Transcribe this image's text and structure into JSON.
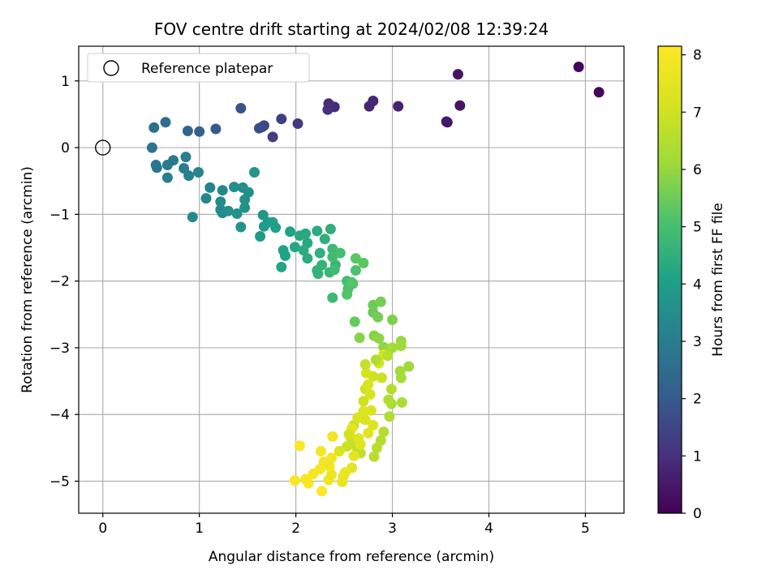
{
  "chart_data": {
    "type": "scatter",
    "title": "FOV centre drift starting at 2024/02/08 12:39:24",
    "xlabel": "Angular distance from reference (arcmin)",
    "ylabel": "Rotation from reference (arcmin)",
    "xlim": [
      -0.25,
      5.4
    ],
    "ylim": [
      -5.48,
      1.52
    ],
    "x_ticks": [
      "0",
      "1",
      "2",
      "3",
      "4",
      "5"
    ],
    "y_ticks": [
      "1",
      "0",
      "−1",
      "−2",
      "−3",
      "−4",
      "−5"
    ],
    "grid": true,
    "legend": {
      "placement": "top-left",
      "entries": [
        "Reference platepar"
      ]
    },
    "reference_point": {
      "x": 0,
      "y": 0
    },
    "colorbar": {
      "label": "Hours from first FF file",
      "range": [
        0,
        8.15
      ],
      "ticks": [
        "0",
        "1",
        "2",
        "3",
        "4",
        "5",
        "6",
        "7",
        "8"
      ],
      "colormap": "viridis"
    },
    "points": [
      [
        4.93,
        1.21,
        0.1
      ],
      [
        5.14,
        0.83,
        0.1
      ],
      [
        3.68,
        1.1,
        0.4
      ],
      [
        3.7,
        0.63,
        0.4
      ],
      [
        3.56,
        0.39,
        0.5
      ],
      [
        3.57,
        0.38,
        0.5
      ],
      [
        3.06,
        0.62,
        0.7
      ],
      [
        2.8,
        0.7,
        0.8
      ],
      [
        2.76,
        0.62,
        0.8
      ],
      [
        2.34,
        0.66,
        0.9
      ],
      [
        2.4,
        0.61,
        0.9
      ],
      [
        2.33,
        0.57,
        1.0
      ],
      [
        2.02,
        0.36,
        1.2
      ],
      [
        1.85,
        0.43,
        1.3
      ],
      [
        1.76,
        0.16,
        1.3
      ],
      [
        1.67,
        0.33,
        1.5
      ],
      [
        1.65,
        0.31,
        1.6
      ],
      [
        1.62,
        0.29,
        1.7
      ],
      [
        1.43,
        0.59,
        1.8
      ],
      [
        1.17,
        0.28,
        2.0
      ],
      [
        1.0,
        0.24,
        2.2
      ],
      [
        0.88,
        0.25,
        2.3
      ],
      [
        0.65,
        0.38,
        2.5
      ],
      [
        0.53,
        0.3,
        2.6
      ],
      [
        0.51,
        0.0,
        2.7
      ],
      [
        0.55,
        -0.26,
        2.8
      ],
      [
        0.56,
        -0.3,
        2.8
      ],
      [
        0.67,
        -0.26,
        2.9
      ],
      [
        0.73,
        -0.19,
        2.9
      ],
      [
        0.86,
        -0.14,
        3.0
      ],
      [
        0.84,
        -0.31,
        3.0
      ],
      [
        0.89,
        -0.42,
        3.1
      ],
      [
        0.67,
        -0.45,
        3.1
      ],
      [
        0.99,
        -0.37,
        3.2
      ],
      [
        1.11,
        -0.6,
        3.2
      ],
      [
        1.24,
        -0.64,
        3.3
      ],
      [
        1.07,
        -0.76,
        3.3
      ],
      [
        1.22,
        -0.81,
        3.4
      ],
      [
        1.22,
        -0.93,
        3.4
      ],
      [
        1.24,
        -0.98,
        3.4
      ],
      [
        0.93,
        -1.04,
        3.4
      ],
      [
        1.36,
        -0.59,
        3.5
      ],
      [
        1.45,
        -0.6,
        3.5
      ],
      [
        1.51,
        -0.67,
        3.5
      ],
      [
        1.47,
        -0.78,
        3.6
      ],
      [
        1.47,
        -0.9,
        3.6
      ],
      [
        1.39,
        -0.99,
        3.6
      ],
      [
        1.3,
        -0.95,
        3.6
      ],
      [
        1.43,
        -1.19,
        3.7
      ],
      [
        1.57,
        -0.37,
        3.7
      ],
      [
        1.66,
        -1.01,
        3.8
      ],
      [
        1.71,
        -1.12,
        3.8
      ],
      [
        1.67,
        -1.18,
        3.9
      ],
      [
        1.63,
        -1.33,
        3.9
      ],
      [
        1.76,
        -1.12,
        4.0
      ],
      [
        1.79,
        -1.2,
        4.0
      ],
      [
        1.94,
        -1.26,
        4.1
      ],
      [
        1.87,
        -1.54,
        4.1
      ],
      [
        1.89,
        -1.62,
        4.1
      ],
      [
        1.85,
        -1.79,
        4.2
      ],
      [
        1.99,
        -1.49,
        4.2
      ],
      [
        2.04,
        -1.32,
        4.3
      ],
      [
        2.1,
        -1.29,
        4.3
      ],
      [
        2.12,
        -1.43,
        4.3
      ],
      [
        2.08,
        -1.54,
        4.4
      ],
      [
        2.12,
        -1.66,
        4.4
      ],
      [
        2.22,
        -1.25,
        4.4
      ],
      [
        2.36,
        -1.22,
        4.5
      ],
      [
        2.3,
        -1.37,
        4.5
      ],
      [
        2.25,
        -1.58,
        4.5
      ],
      [
        2.27,
        -1.76,
        4.6
      ],
      [
        2.22,
        -1.84,
        4.6
      ],
      [
        2.23,
        -1.89,
        4.6
      ],
      [
        2.35,
        -1.87,
        4.7
      ],
      [
        2.41,
        -1.76,
        4.7
      ],
      [
        2.38,
        -2.25,
        4.8
      ],
      [
        2.38,
        -1.52,
        4.8
      ],
      [
        2.38,
        -1.64,
        4.9
      ],
      [
        2.4,
        -1.83,
        4.9
      ],
      [
        2.46,
        -1.58,
        5.0
      ],
      [
        2.53,
        -2.0,
        5.0
      ],
      [
        2.54,
        -2.12,
        5.1
      ],
      [
        2.59,
        -2.04,
        5.1
      ],
      [
        2.62,
        -1.84,
        5.1
      ],
      [
        2.53,
        -2.2,
        5.2
      ],
      [
        2.58,
        -2.02,
        5.2
      ],
      [
        2.62,
        -1.66,
        5.3
      ],
      [
        2.7,
        -1.73,
        5.3
      ],
      [
        2.61,
        -2.61,
        5.4
      ],
      [
        2.8,
        -2.36,
        5.5
      ],
      [
        2.8,
        -2.47,
        5.5
      ],
      [
        2.85,
        -2.54,
        5.6
      ],
      [
        2.88,
        -2.31,
        5.6
      ],
      [
        3.0,
        -2.58,
        5.7
      ],
      [
        2.66,
        -2.85,
        5.8
      ],
      [
        2.81,
        -2.82,
        5.8
      ],
      [
        2.86,
        -2.86,
        5.9
      ],
      [
        2.91,
        -2.99,
        5.9
      ],
      [
        2.97,
        -3.02,
        6.0
      ],
      [
        3.09,
        -2.9,
        6.0
      ],
      [
        3.09,
        -2.97,
        6.1
      ],
      [
        3.17,
        -3.28,
        6.1
      ],
      [
        3.08,
        -3.35,
        6.2
      ],
      [
        3.09,
        -3.45,
        6.2
      ],
      [
        3.1,
        -3.82,
        6.3
      ],
      [
        2.99,
        -3.84,
        6.3
      ],
      [
        2.97,
        -4.03,
        6.4
      ],
      [
        2.96,
        -3.78,
        6.4
      ],
      [
        2.91,
        -4.26,
        6.5
      ],
      [
        2.88,
        -4.39,
        6.5
      ],
      [
        2.84,
        -4.5,
        6.6
      ],
      [
        2.81,
        -4.63,
        6.6
      ],
      [
        2.67,
        -4.58,
        6.7
      ],
      [
        2.63,
        -4.49,
        6.7
      ],
      [
        2.6,
        -4.42,
        6.8
      ],
      [
        2.57,
        -4.35,
        6.8
      ],
      [
        2.53,
        -4.48,
        6.9
      ],
      [
        2.6,
        -4.16,
        6.9
      ],
      [
        2.7,
        -3.8,
        7.0
      ],
      [
        2.72,
        -3.62,
        7.0
      ],
      [
        2.8,
        -3.43,
        7.0
      ],
      [
        2.86,
        -3.23,
        7.1
      ],
      [
        2.91,
        -3.1,
        7.1
      ],
      [
        2.73,
        -3.38,
        7.1
      ],
      [
        2.75,
        -3.55,
        7.2
      ],
      [
        2.77,
        -3.7,
        7.2
      ],
      [
        2.78,
        -3.94,
        7.2
      ],
      [
        2.7,
        -3.95,
        7.3
      ],
      [
        2.72,
        -4.08,
        7.3
      ],
      [
        2.8,
        -4.16,
        7.3
      ],
      [
        2.75,
        -4.28,
        7.4
      ],
      [
        2.67,
        -4.45,
        7.4
      ],
      [
        2.6,
        -4.62,
        7.5
      ],
      [
        2.58,
        -4.8,
        7.5
      ],
      [
        2.51,
        -4.87,
        7.6
      ],
      [
        2.49,
        -4.93,
        7.6
      ],
      [
        2.48,
        -5.01,
        7.6
      ],
      [
        2.37,
        -4.9,
        7.7
      ],
      [
        2.34,
        -4.98,
        7.7
      ],
      [
        2.35,
        -4.78,
        7.8
      ],
      [
        2.37,
        -4.65,
        7.8
      ],
      [
        2.29,
        -4.71,
        7.8
      ],
      [
        2.26,
        -4.55,
        7.9
      ],
      [
        2.25,
        -4.82,
        7.9
      ],
      [
        2.18,
        -4.89,
        7.9
      ],
      [
        2.1,
        -4.97,
        8.0
      ],
      [
        2.13,
        -5.03,
        8.0
      ],
      [
        1.99,
        -4.99,
        8.0
      ],
      [
        2.04,
        -4.47,
        8.1
      ],
      [
        2.27,
        -5.15,
        8.1
      ],
      [
        2.58,
        -4.21,
        7.5
      ],
      [
        2.38,
        -4.33,
        7.8
      ],
      [
        2.65,
        -4.36,
        7.4
      ],
      [
        2.89,
        -3.45,
        6.9
      ],
      [
        2.72,
        -3.25,
        6.8
      ],
      [
        2.95,
        -3.12,
        6.6
      ],
      [
        2.83,
        -3.18,
        6.4
      ],
      [
        3.0,
        -3.0,
        6.2
      ],
      [
        2.99,
        -3.62,
        6.5
      ],
      [
        2.64,
        -4.05,
        7.2
      ],
      [
        2.55,
        -4.3,
        7.1
      ],
      [
        2.45,
        -4.55,
        7.3
      ]
    ]
  }
}
